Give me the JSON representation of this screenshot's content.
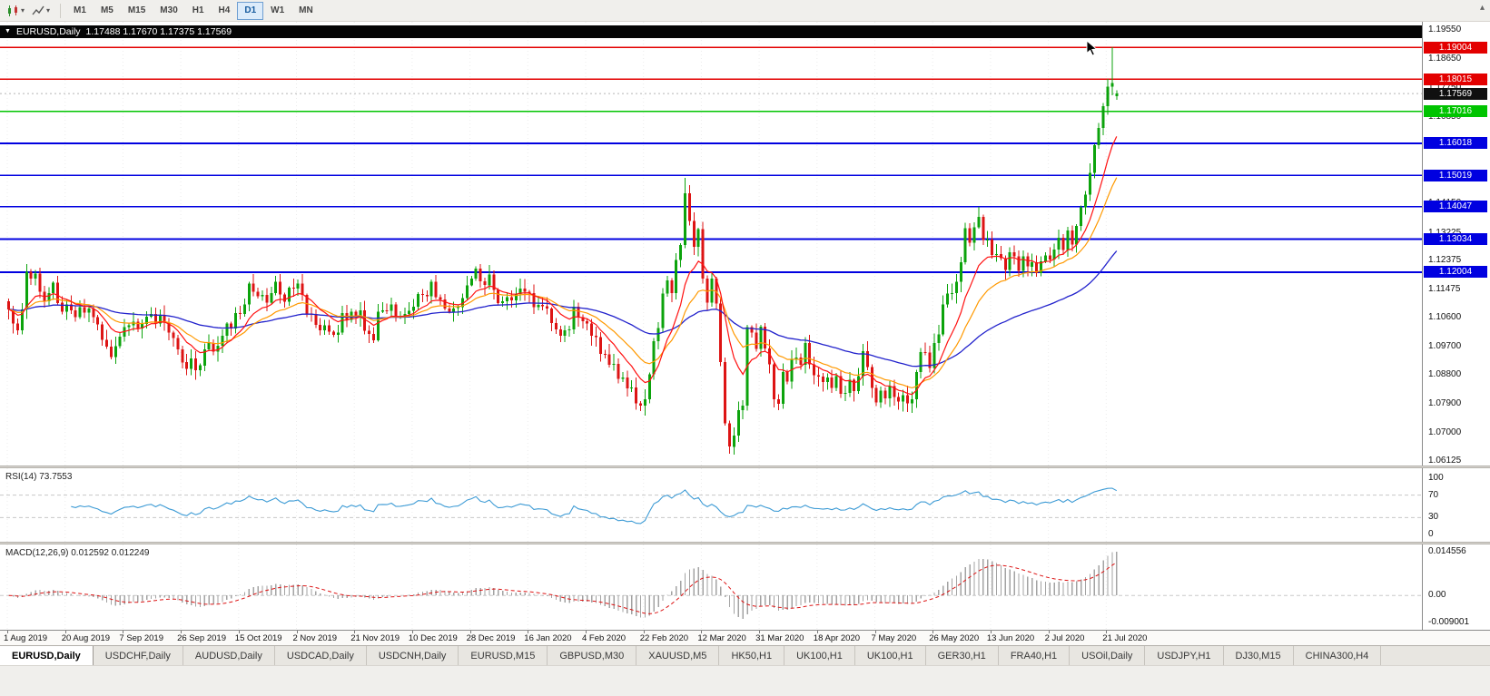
{
  "toolbar": {
    "timeframes": [
      "M1",
      "M5",
      "M15",
      "M30",
      "H1",
      "H4",
      "D1",
      "W1",
      "MN"
    ],
    "active_timeframe": "D1",
    "scroll_up_glyph": "▴"
  },
  "chart": {
    "collapse_glyph": "▼",
    "symbol_title": "EURUSD,Daily",
    "ohlc_text": "1.17488 1.17670 1.17375 1.17569"
  },
  "price_scale": {
    "ticks": [
      1.1955,
      1.1865,
      1.1775,
      1.1685,
      1.1595,
      1.1505,
      1.1415,
      1.13225,
      1.12375,
      1.11475,
      1.106,
      1.097,
      1.088,
      1.079,
      1.07,
      1.06125
    ],
    "current_price": 1.17569
  },
  "levels": [
    {
      "price": 1.19004,
      "color": "red"
    },
    {
      "price": 1.18015,
      "color": "red"
    },
    {
      "price": 1.17016,
      "color": "green"
    },
    {
      "price": 1.16018,
      "color": "blue"
    },
    {
      "price": 1.15019,
      "color": "blue"
    },
    {
      "price": 1.14047,
      "color": "blue"
    },
    {
      "price": 1.13034,
      "color": "blue"
    },
    {
      "price": 1.12004,
      "color": "blue"
    }
  ],
  "rsi_panel": {
    "label": "RSI(14) 73.7553",
    "ticks": [
      100,
      70,
      30,
      0
    ],
    "level_lines": [
      70,
      30
    ]
  },
  "macd_panel": {
    "label": "MACD(12,26,9) 0.012592 0.012249",
    "ticks": {
      "max": "0.014556",
      "zero": "0.00",
      "min": "-0.009001"
    },
    "ylim": [
      -0.009001,
      0.014556
    ]
  },
  "date_axis": [
    "1 Aug 2019",
    "20 Aug 2019",
    "7 Sep 2019",
    "26 Sep 2019",
    "15 Oct 2019",
    "2 Nov 2019",
    "21 Nov 2019",
    "10 Dec 2019",
    "28 Dec 2019",
    "16 Jan 2020",
    "4 Feb 2020",
    "22 Feb 2020",
    "12 Mar 2020",
    "31 Mar 2020",
    "18 Apr 2020",
    "7 May 2020",
    "26 May 2020",
    "13 Jun 2020",
    "2 Jul 2020",
    "21 Jul 2020"
  ],
  "tabs": [
    {
      "label": "EURUSD,Daily",
      "active": true
    },
    {
      "label": "USDCHF,Daily"
    },
    {
      "label": "AUDUSD,Daily"
    },
    {
      "label": "USDCAD,Daily"
    },
    {
      "label": "USDCNH,Daily"
    },
    {
      "label": "EURUSD,M15"
    },
    {
      "label": "GBPUSD,M30"
    },
    {
      "label": "XAUUSD,M5"
    },
    {
      "label": "HK50,H1"
    },
    {
      "label": "UK100,H1"
    },
    {
      "label": "UK100,H1"
    },
    {
      "label": "GER30,H1"
    },
    {
      "label": "FRA40,H1"
    },
    {
      "label": "USOil,Daily"
    },
    {
      "label": "USDJPY,H1"
    },
    {
      "label": "DJ30,M15"
    },
    {
      "label": "CHINA300,H4"
    }
  ],
  "colors": {
    "up": "#0ca30c",
    "down": "#dd1414",
    "ma_fast": "#ff1111",
    "ma_mid": "#ff9900",
    "ma_slow": "#2222cc",
    "rsi_line": "#3d9bd5",
    "macd_hist": "#a3a3a3",
    "macd_signal": "#dd1414",
    "level_red": "#e30000",
    "level_green": "#00c400",
    "level_blue": "#0000e0",
    "current_badge_bg": "#101010",
    "grid": "#ececec"
  },
  "chart_data": {
    "type": "candlestick",
    "symbol": "EURUSD",
    "timeframe": "Daily",
    "x_range": [
      "1 Aug 2019",
      "21 Jul 2020"
    ],
    "price_range": [
      1.06125,
      1.1955
    ],
    "first_open": 1.111,
    "closes": [
      1.1085,
      1.104,
      1.102,
      1.1085,
      1.1202,
      1.118,
      1.1196,
      1.114,
      1.111,
      1.1135,
      1.1168,
      1.1105,
      1.1078,
      1.11,
      1.1082,
      1.106,
      1.1092,
      1.1075,
      1.1088,
      1.106,
      1.1038,
      1.099,
      1.0968,
      1.0936,
      1.097,
      1.1,
      1.103,
      1.1035,
      1.1047,
      1.1025,
      1.104,
      1.1062,
      1.107,
      1.104,
      1.1068,
      1.1043,
      1.1013,
      1.0995,
      1.096,
      1.092,
      1.09,
      1.0932,
      1.0895,
      1.091,
      1.096,
      1.098,
      1.0953,
      1.0971,
      1.1003,
      1.104,
      1.1025,
      1.1073,
      1.107,
      1.11,
      1.1165,
      1.114,
      1.1125,
      1.113,
      1.1105,
      1.1135,
      1.117,
      1.1131,
      1.1108,
      1.1152,
      1.115,
      1.1165,
      1.113,
      1.1072,
      1.107,
      1.1037,
      1.1019,
      1.1035,
      1.1015,
      1.1005,
      1.1012,
      1.1073,
      1.1052,
      1.1078,
      1.106,
      1.1082,
      1.1018,
      1.1008,
      1.0989,
      1.1078,
      1.1082,
      1.108,
      1.11,
      1.106,
      1.1062,
      1.107,
      1.108,
      1.1093,
      1.1133,
      1.113,
      1.1125,
      1.117,
      1.1122,
      1.1115,
      1.1088,
      1.1078,
      1.1088,
      1.1092,
      1.112,
      1.116,
      1.118,
      1.1212,
      1.1172,
      1.116,
      1.1193,
      1.1145,
      1.1105,
      1.111,
      1.1122,
      1.1113,
      1.1132,
      1.115,
      1.114,
      1.1135,
      1.1092,
      1.1098,
      1.1095,
      1.1088,
      1.1042,
      1.1022,
      1.1003,
      1.102,
      1.1023,
      1.1093,
      1.106,
      1.1048,
      1.104,
      1.1002,
      1.0998,
      1.0946,
      1.0945,
      1.0912,
      1.0915,
      1.0868,
      1.0872,
      1.0839,
      1.0842,
      1.0792,
      1.0785,
      1.0805,
      1.0882,
      1.0985,
      1.1026,
      1.1134,
      1.1175,
      1.1135,
      1.1238,
      1.1285,
      1.1446,
      1.136,
      1.128,
      1.1334,
      1.1181,
      1.1106,
      1.118,
      1.1103,
      1.092,
      1.073,
      1.0657,
      1.0692,
      1.0771,
      1.0785,
      1.1029,
      1.1013,
      1.0962,
      1.1031,
      1.0963,
      1.0914,
      1.0805,
      1.0791,
      1.089,
      1.086,
      1.093,
      1.0935,
      1.0912,
      1.098,
      1.0914,
      1.088,
      1.0875,
      1.0858,
      1.0872,
      1.084,
      1.0877,
      1.0822,
      1.0825,
      1.0865,
      1.083,
      1.0877,
      1.0955,
      1.0905,
      1.084,
      1.0795,
      1.0832,
      1.0808,
      1.0845,
      1.0812,
      1.0798,
      1.0817,
      1.0792,
      1.0805,
      1.089,
      1.0952,
      1.095,
      1.0902,
      1.098,
      1.1007,
      1.11,
      1.1134,
      1.1135,
      1.117,
      1.1232,
      1.1337,
      1.1292,
      1.134,
      1.1373,
      1.13,
      1.1302,
      1.1254,
      1.1257,
      1.1244,
      1.1207,
      1.1262,
      1.125,
      1.1205,
      1.125,
      1.1218,
      1.1232,
      1.1198,
      1.1234,
      1.1252,
      1.124,
      1.1271,
      1.1308,
      1.127,
      1.133,
      1.1287,
      1.1345,
      1.1402,
      1.1442,
      1.151,
      1.1596,
      1.165,
      1.1718,
      1.1778,
      1.179,
      1.17569
    ],
    "wick_overrides": {
      "152": {
        "high": 1.1495
      },
      "162": {
        "low": 1.0636
      },
      "248": {
        "high": 1.1901
      }
    },
    "last_candle": {
      "open": 1.17488,
      "high": 1.1767,
      "low": 1.17375,
      "close": 1.17569
    },
    "indicators": {
      "ma_fast_period": 10,
      "ma_mid_period": 20,
      "ma_slow_period": 60,
      "rsi_period": 14,
      "macd": [
        12,
        26,
        9
      ]
    }
  }
}
